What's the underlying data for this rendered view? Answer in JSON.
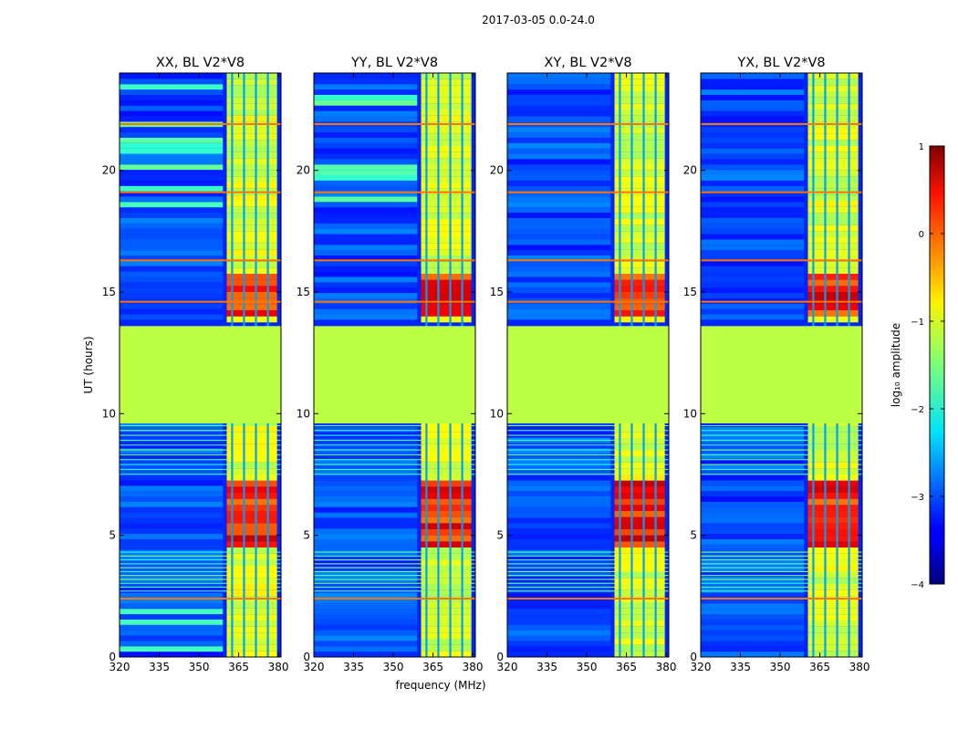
{
  "chart_data": {
    "type": "heatmap",
    "suptitle": "2017-03-05 0.0-24.0",
    "xlabel": "frequency (MHz)",
    "ylabel": "UT (hours)",
    "xlim": [
      320,
      381
    ],
    "ylim": [
      0,
      24
    ],
    "xticks": [
      "320",
      "335",
      "350",
      "365",
      "380"
    ],
    "yticks": [
      "0",
      "5",
      "10",
      "15",
      "20"
    ],
    "panels": [
      {
        "title": "XX, BL V2*V8",
        "pol": "XX"
      },
      {
        "title": "YY, BL V2*V8",
        "pol": "YY"
      },
      {
        "title": "XY, BL V2*V8",
        "pol": "XY"
      },
      {
        "title": "YX, BL V2*V8",
        "pol": "YX"
      }
    ],
    "colorbar": {
      "label": "log₁₀ amplitude",
      "range": [
        -4,
        1
      ],
      "ticks": [
        "1",
        "0",
        "−1",
        "−2",
        "−3",
        "−4"
      ],
      "colormap": "jet"
    },
    "features": {
      "masked_interval_hours": [
        9.6,
        13.6
      ],
      "masked_log_amplitude": -1.2,
      "signal_band_mhz": [
        360.5,
        379.5
      ],
      "signal_channels_mhz": [
        362.5,
        367,
        371.5,
        376
      ],
      "strong_rfi_hours": [
        [
          4.3,
          7.0
        ],
        [
          13.8,
          15.6
        ]
      ],
      "background_log_amplitude": -3.2
    }
  },
  "colors": {
    "masked": "#96ff56",
    "background": "#1a50ff",
    "frame": "#000000"
  }
}
